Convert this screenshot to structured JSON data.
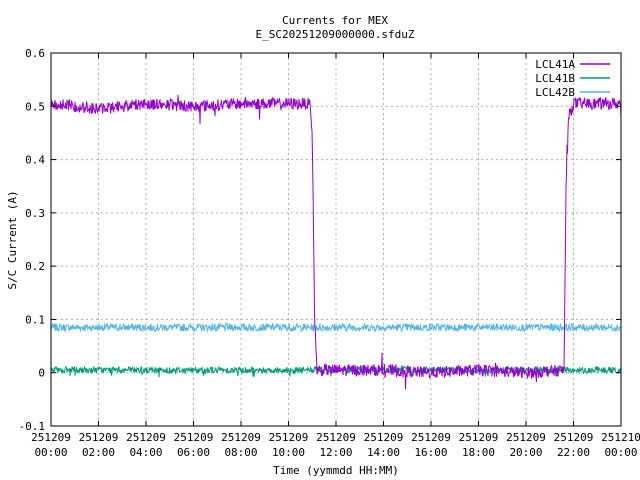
{
  "chart_data": {
    "type": "line",
    "title": "Currents for MEX",
    "subtitle": "E_SC20251209000000.sfduZ",
    "xlabel": "Time (yymmdd HH:MM)",
    "ylabel": "S/C Current (A)",
    "ylim": [
      -0.1,
      0.6
    ],
    "yticks": [
      "-0.1",
      "0",
      "0.1",
      "0.2",
      "0.3",
      "0.4",
      "0.5",
      "0.6"
    ],
    "xlim_hours": [
      0,
      24
    ],
    "xticks": [
      {
        "date": "251209",
        "time": "00:00"
      },
      {
        "date": "251209",
        "time": "02:00"
      },
      {
        "date": "251209",
        "time": "04:00"
      },
      {
        "date": "251209",
        "time": "06:00"
      },
      {
        "date": "251209",
        "time": "08:00"
      },
      {
        "date": "251209",
        "time": "10:00"
      },
      {
        "date": "251209",
        "time": "12:00"
      },
      {
        "date": "251209",
        "time": "14:00"
      },
      {
        "date": "251209",
        "time": "16:00"
      },
      {
        "date": "251209",
        "time": "18:00"
      },
      {
        "date": "251209",
        "time": "20:00"
      },
      {
        "date": "251209",
        "time": "22:00"
      },
      {
        "date": "251210",
        "time": "00:00"
      }
    ],
    "grid": true,
    "legend_position": "top-right",
    "series": [
      {
        "name": "LCL41A",
        "color": "#9400d3",
        "x": [
          0,
          2,
          4,
          6,
          8,
          10,
          10.9,
          11.0,
          11.1,
          11.2,
          12,
          14,
          16,
          18,
          20,
          21.6,
          21.7,
          21.8,
          22,
          24
        ],
        "y": [
          0.505,
          0.495,
          0.505,
          0.5,
          0.505,
          0.505,
          0.505,
          0.45,
          0.1,
          0.005,
          0.005,
          0.005,
          0.0,
          0.005,
          0.0,
          0.005,
          0.4,
          0.48,
          0.505,
          0.505
        ]
      },
      {
        "name": "LCL41B",
        "color": "#009e73",
        "x": [
          0,
          24
        ],
        "y": [
          0.005,
          0.005
        ]
      },
      {
        "name": "LCL42B",
        "color": "#56b4e9",
        "x": [
          0,
          24
        ],
        "y": [
          0.085,
          0.085
        ]
      }
    ]
  }
}
